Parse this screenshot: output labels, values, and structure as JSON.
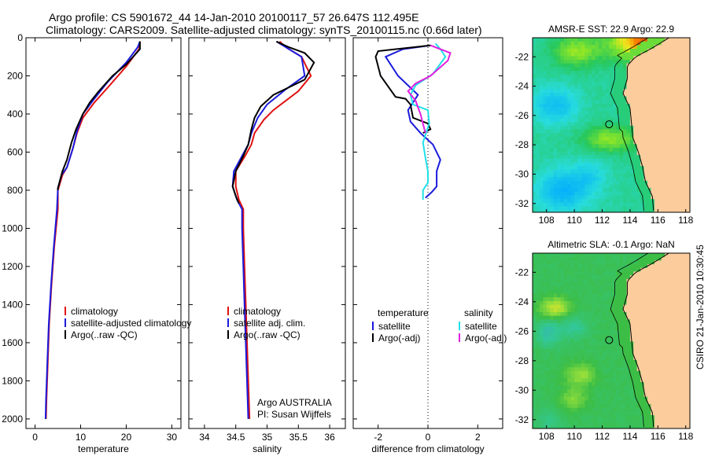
{
  "header": {
    "line1": "Argo profile: CS 5901672_44 14-Jan-2010 20100117_57 26.647S 112.495E",
    "line2": "Climatology: CARS2009. Satellite-adjusted climatology: synTS_20100115.nc (0.66d later)"
  },
  "side_label": "CSIRO 21-Jan-2010 10:30:45",
  "colors": {
    "red": "#e01010",
    "blue": "#1a1adc",
    "black": "#000000",
    "cyan": "#20e0e8",
    "magenta": "#e020e0"
  },
  "chart_data": [
    {
      "id": "temperature",
      "type": "line",
      "xlabel": "temperature",
      "xlim": [
        -2,
        32
      ],
      "ylim": [
        2050,
        0
      ],
      "xticks": [
        0,
        10,
        20,
        30
      ],
      "yticks": [
        0,
        200,
        400,
        600,
        800,
        1000,
        1200,
        1400,
        1600,
        1800,
        2000
      ],
      "legend": [
        {
          "name": "climatology",
          "color": "#e01010"
        },
        {
          "name": "satellite-adjusted climatology",
          "color": "#1a1adc"
        },
        {
          "name": "Argo(..raw -QC)",
          "color": "#000000"
        }
      ],
      "series": [
        {
          "name": "climatology",
          "color": "#e01010",
          "points": [
            [
              23,
              20
            ],
            [
              22.8,
              60
            ],
            [
              20,
              150
            ],
            [
              16,
              260
            ],
            [
              13,
              340
            ],
            [
              10.5,
              420
            ],
            [
              9.2,
              500
            ],
            [
              8.3,
              580
            ],
            [
              7,
              680
            ],
            [
              6,
              720
            ],
            [
              5,
              800
            ],
            [
              5,
              900
            ],
            [
              4.2,
              1100
            ],
            [
              3.6,
              1300
            ],
            [
              3.1,
              1500
            ],
            [
              2.8,
              1700
            ],
            [
              2.5,
              1900
            ],
            [
              2.4,
              2000
            ]
          ]
        },
        {
          "name": "satellite-adjusted climatology",
          "color": "#1a1adc",
          "points": [
            [
              23,
              20
            ],
            [
              22.5,
              50
            ],
            [
              20,
              130
            ],
            [
              16,
              230
            ],
            [
              13,
              320
            ],
            [
              10.5,
              400
            ],
            [
              9.2,
              490
            ],
            [
              8.3,
              580
            ],
            [
              7,
              680
            ],
            [
              5.8,
              720
            ],
            [
              5,
              790
            ],
            [
              4.8,
              900
            ],
            [
              4.1,
              1100
            ],
            [
              3.5,
              1300
            ],
            [
              3,
              1500
            ],
            [
              2.7,
              1700
            ],
            [
              2.4,
              1900
            ],
            [
              2.3,
              2000
            ]
          ]
        },
        {
          "name": "Argo(..raw -QC)",
          "color": "#000000",
          "points": [
            [
              23,
              20
            ],
            [
              23,
              60
            ],
            [
              20,
              140
            ],
            [
              17,
              200
            ],
            [
              14,
              280
            ],
            [
              12,
              340
            ],
            [
              10.5,
              400
            ],
            [
              9,
              480
            ],
            [
              8,
              550
            ],
            [
              7,
              640
            ],
            [
              6,
              700
            ],
            [
              5,
              790
            ],
            [
              5,
              800
            ]
          ]
        }
      ]
    },
    {
      "id": "salinity",
      "type": "line",
      "xlabel": "salinity",
      "xlim": [
        33.75,
        36.25
      ],
      "ylim": [
        2050,
        0
      ],
      "xticks": [
        34,
        34.5,
        35,
        35.5,
        36
      ],
      "legend": [
        {
          "name": "climatology",
          "color": "#e01010"
        },
        {
          "name": "satellite adj. clim.",
          "color": "#1a1adc"
        },
        {
          "name": "Argo(..raw -QC)",
          "color": "#000000"
        }
      ],
      "notes": [
        "Argo AUSTRALIA",
        "PI: Susan Wijffels"
      ],
      "series": [
        {
          "name": "climatology",
          "color": "#e01010",
          "points": [
            [
              35.2,
              20
            ],
            [
              35.3,
              50
            ],
            [
              35.55,
              100
            ],
            [
              35.7,
              200
            ],
            [
              35.5,
              280
            ],
            [
              35.1,
              380
            ],
            [
              34.95,
              430
            ],
            [
              34.8,
              500
            ],
            [
              34.75,
              560
            ],
            [
              34.65,
              620
            ],
            [
              34.5,
              700
            ],
            [
              34.5,
              780
            ],
            [
              34.55,
              850
            ],
            [
              34.62,
              900
            ],
            [
              34.62,
              1000
            ],
            [
              34.64,
              1200
            ],
            [
              34.66,
              1400
            ],
            [
              34.68,
              1600
            ],
            [
              34.7,
              1800
            ],
            [
              34.72,
              2000
            ]
          ]
        },
        {
          "name": "satellite adj. clim.",
          "color": "#1a1adc",
          "points": [
            [
              35.15,
              20
            ],
            [
              35.35,
              60
            ],
            [
              35.55,
              100
            ],
            [
              35.6,
              200
            ],
            [
              35.3,
              270
            ],
            [
              35,
              350
            ],
            [
              34.85,
              420
            ],
            [
              34.75,
              500
            ],
            [
              34.7,
              560
            ],
            [
              34.6,
              620
            ],
            [
              34.47,
              700
            ],
            [
              34.45,
              780
            ],
            [
              34.52,
              850
            ],
            [
              34.6,
              900
            ],
            [
              34.6,
              1000
            ],
            [
              34.62,
              1200
            ],
            [
              34.64,
              1400
            ],
            [
              34.66,
              1600
            ],
            [
              34.68,
              1800
            ],
            [
              34.7,
              2000
            ]
          ]
        },
        {
          "name": "Argo(..raw -QC)",
          "color": "#000000",
          "points": [
            [
              35.15,
              20
            ],
            [
              35.35,
              50
            ],
            [
              35.6,
              80
            ],
            [
              35.75,
              130
            ],
            [
              35.6,
              220
            ],
            [
              35.35,
              260
            ],
            [
              35.1,
              300
            ],
            [
              34.9,
              360
            ],
            [
              34.8,
              420
            ],
            [
              34.75,
              480
            ],
            [
              34.7,
              560
            ],
            [
              34.62,
              620
            ],
            [
              34.5,
              700
            ],
            [
              34.45,
              780
            ],
            [
              34.5,
              830
            ],
            [
              34.55,
              870
            ]
          ]
        }
      ]
    },
    {
      "id": "difference",
      "type": "line",
      "xlabel": "difference from climatology",
      "xlim": [
        -3,
        3
      ],
      "ylim": [
        2050,
        0
      ],
      "xticks": [
        -2,
        0,
        2
      ],
      "zero_line": true,
      "legend_groups": [
        {
          "title": "temperature",
          "entries": [
            {
              "name": "satellite",
              "color": "#1a1adc"
            },
            {
              "name": "Argo(-adj)",
              "color": "#000000"
            }
          ]
        },
        {
          "title": "salinity",
          "entries": [
            {
              "name": "satellite",
              "color": "#20e0e8"
            },
            {
              "name": "Argo(-adj)",
              "color": "#e020e0"
            }
          ]
        }
      ],
      "series": [
        {
          "name": "temperature satellite",
          "color": "#1a1adc",
          "points": [
            [
              0.1,
              40
            ],
            [
              -1,
              60
            ],
            [
              -1.7,
              100
            ],
            [
              -1.2,
              200
            ],
            [
              -0.4,
              300
            ],
            [
              -0.8,
              380
            ],
            [
              -0.7,
              440
            ],
            [
              -0.3,
              500
            ],
            [
              0.2,
              560
            ],
            [
              0.5,
              640
            ],
            [
              0.35,
              700
            ],
            [
              0.35,
              780
            ],
            [
              0.15,
              810
            ],
            [
              -0.1,
              840
            ]
          ]
        },
        {
          "name": "temperature Argo(-adj)",
          "color": "#000000",
          "points": [
            [
              0.1,
              40
            ],
            [
              -2,
              70
            ],
            [
              -2.1,
              100
            ],
            [
              -1.9,
              200
            ],
            [
              -1.3,
              310
            ],
            [
              -0.9,
              320
            ],
            [
              -0.7,
              350
            ],
            [
              -0.6,
              420
            ],
            [
              0,
              450
            ],
            [
              0.1,
              480
            ],
            [
              -0.2,
              500
            ]
          ]
        },
        {
          "name": "salinity satellite",
          "color": "#20e0e8",
          "points": [
            [
              0.3,
              30
            ],
            [
              0.5,
              60
            ],
            [
              0.7,
              100
            ],
            [
              0.2,
              190
            ],
            [
              -0.5,
              250
            ],
            [
              -0.7,
              300
            ],
            [
              -0.6,
              350
            ],
            [
              0,
              380
            ],
            [
              0.05,
              450
            ],
            [
              -0.2,
              550
            ],
            [
              -0.1,
              630
            ],
            [
              0,
              700
            ],
            [
              0,
              760
            ],
            [
              -0.2,
              800
            ],
            [
              -0.2,
              850
            ]
          ]
        },
        {
          "name": "salinity Argo(-adj)",
          "color": "#e020e0",
          "points": [
            [
              0.1,
              40
            ],
            [
              0.9,
              80
            ],
            [
              0.8,
              120
            ],
            [
              0.1,
              200
            ],
            [
              -0.5,
              240
            ],
            [
              -0.8,
              280
            ],
            [
              -0.5,
              330
            ],
            [
              -0.3,
              400
            ],
            [
              -0.1,
              500
            ]
          ]
        }
      ]
    },
    {
      "id": "sst-map",
      "type": "heatmap",
      "title": "AMSR-E SST: 22.9 Argo: 22.9",
      "xlim": [
        107,
        118.3
      ],
      "ylim": [
        -32.6,
        -20.7
      ],
      "xticks": [
        108,
        110,
        112,
        114,
        116,
        118
      ],
      "yticks": [
        -22,
        -24,
        -26,
        -28,
        -30,
        -32
      ],
      "marker": [
        112.5,
        -26.6
      ]
    },
    {
      "id": "sla-map",
      "type": "heatmap",
      "title": "Altimetric SLA: -0.1 Argo: NaN",
      "xlim": [
        107,
        118.3
      ],
      "ylim": [
        -32.6,
        -20.7
      ],
      "xticks": [
        108,
        110,
        112,
        114,
        116,
        118
      ],
      "yticks": [
        -22,
        -24,
        -26,
        -28,
        -30,
        -32
      ],
      "marker": [
        112.5,
        -26.6
      ]
    }
  ]
}
